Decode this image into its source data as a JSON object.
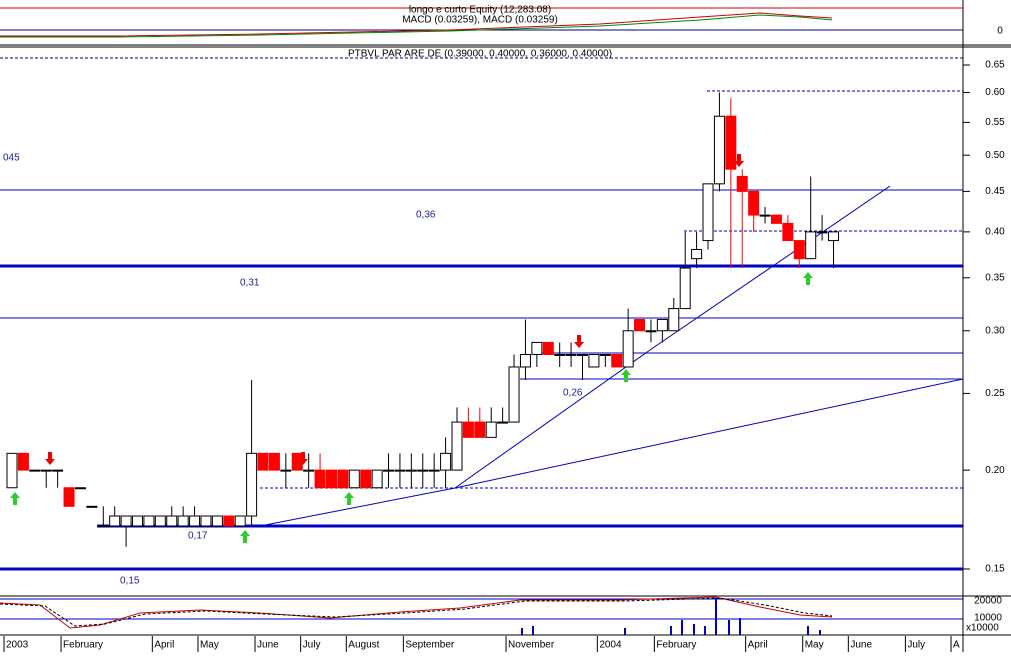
{
  "header": {
    "macd_title": "longo e curto Equity (12,283.08)",
    "macd_subtitle": "MACD (0.03259), MACD (0.03259)",
    "macd_tick": "0"
  },
  "volume": {
    "ticks": [
      "20000",
      "10000"
    ],
    "unit": "x10000"
  },
  "chart_data": {
    "type": "candlestick",
    "title": "PTBVL PAR ARE DE (0.39000, 0.40000, 0.36000, 0.40000)",
    "annotations": [
      "045",
      "0,36",
      "0,31",
      "0,26",
      "0,17",
      "0,15"
    ],
    "categories": [
      "2003",
      null,
      null,
      null,
      null,
      "February",
      null,
      null,
      null,
      null,
      null,
      null,
      null,
      "April",
      null,
      null,
      null,
      "May",
      null,
      null,
      null,
      null,
      "June",
      null,
      null,
      null,
      "July",
      null,
      null,
      null,
      "August",
      null,
      null,
      null,
      null,
      "September",
      null,
      null,
      null,
      null,
      null,
      null,
      null,
      null,
      "November",
      null,
      null,
      null,
      null,
      null,
      null,
      null,
      "2004",
      null,
      null,
      null,
      null,
      "February",
      null,
      null,
      null,
      null,
      null,
      null,
      null,
      "April",
      null,
      null,
      null,
      null,
      "May",
      null,
      null,
      null,
      "June",
      null,
      null,
      null,
      null,
      "July",
      null,
      null,
      null,
      "A"
    ],
    "open": [
      0.19,
      0.21,
      0.2,
      0.2,
      0.2,
      0.19,
      0.19,
      0.18,
      0.17,
      0.17,
      0.17,
      0.17,
      0.17,
      0.17,
      0.17,
      0.17,
      0.17,
      0.17,
      0.17,
      0.175,
      0.17,
      0.175,
      0.21,
      0.21,
      0.2,
      0.21,
      0.2,
      0.2,
      0.2,
      0.2,
      0.19,
      0.2,
      0.19,
      0.2,
      0.2,
      0.2,
      0.2,
      0.2,
      0.2,
      0.2,
      0.23,
      0.23,
      0.22,
      0.23,
      0.23,
      0.27,
      0.28,
      0.29,
      0.28,
      0.28,
      0.28,
      0.27,
      0.28,
      0.28,
      0.27,
      0.31,
      0.3,
      0.3,
      0.3,
      0.32,
      0.37,
      0.39,
      0.46,
      0.56,
      0.47,
      0.45,
      0.42,
      0.42,
      0.41,
      0.39,
      0.37,
      0.4,
      0.39,
      null,
      null,
      null,
      null,
      null,
      null,
      null,
      null,
      null,
      null,
      null
    ],
    "high": [
      0.21,
      0.21,
      0.2,
      0.2,
      0.2,
      0.19,
      0.19,
      0.18,
      0.18,
      0.18,
      0.175,
      0.175,
      0.175,
      0.175,
      0.18,
      0.18,
      0.18,
      0.175,
      0.175,
      0.175,
      0.175,
      0.26,
      0.21,
      0.21,
      0.21,
      0.21,
      0.21,
      0.21,
      0.2,
      0.2,
      0.2,
      0.2,
      0.2,
      0.21,
      0.21,
      0.21,
      0.21,
      0.21,
      0.22,
      0.24,
      0.24,
      0.24,
      0.24,
      0.24,
      0.28,
      0.31,
      0.29,
      0.29,
      0.29,
      0.29,
      0.28,
      0.28,
      0.28,
      0.28,
      0.32,
      0.31,
      0.31,
      0.31,
      0.33,
      0.4,
      0.4,
      0.46,
      0.6,
      0.59,
      0.48,
      0.45,
      0.43,
      0.42,
      0.42,
      0.39,
      0.47,
      0.42,
      0.4,
      null,
      null,
      null,
      null,
      null,
      null,
      null,
      null,
      null,
      null,
      null
    ],
    "low": [
      0.19,
      0.2,
      0.2,
      0.19,
      0.19,
      0.18,
      0.19,
      0.18,
      0.17,
      0.17,
      0.16,
      0.17,
      0.17,
      0.17,
      0.17,
      0.17,
      0.17,
      0.17,
      0.17,
      0.17,
      0.17,
      0.17,
      0.2,
      0.2,
      0.19,
      0.2,
      0.19,
      0.19,
      0.19,
      0.19,
      0.19,
      0.19,
      0.19,
      0.19,
      0.19,
      0.19,
      0.19,
      0.19,
      0.19,
      0.2,
      0.22,
      0.22,
      0.22,
      0.23,
      0.23,
      0.26,
      0.27,
      0.28,
      0.27,
      0.27,
      0.26,
      0.27,
      0.27,
      0.27,
      0.27,
      0.3,
      0.29,
      0.29,
      0.3,
      0.32,
      0.36,
      0.38,
      0.45,
      0.36,
      0.36,
      0.4,
      0.41,
      0.41,
      0.39,
      0.36,
      0.37,
      0.39,
      0.36,
      null,
      null,
      null,
      null,
      null,
      null,
      null,
      null,
      null,
      null,
      null
    ],
    "close": [
      0.21,
      0.2,
      0.2,
      0.2,
      0.2,
      0.18,
      0.19,
      0.18,
      0.17,
      0.175,
      0.175,
      0.175,
      0.175,
      0.175,
      0.175,
      0.175,
      0.175,
      0.175,
      0.175,
      0.17,
      0.175,
      0.21,
      0.2,
      0.2,
      0.2,
      0.2,
      0.2,
      0.19,
      0.19,
      0.19,
      0.2,
      0.19,
      0.2,
      0.2,
      0.2,
      0.2,
      0.2,
      0.2,
      0.21,
      0.23,
      0.22,
      0.22,
      0.23,
      0.23,
      0.27,
      0.28,
      0.29,
      0.28,
      0.28,
      0.28,
      0.28,
      0.28,
      0.28,
      0.27,
      0.3,
      0.3,
      0.3,
      0.31,
      0.32,
      0.36,
      0.38,
      0.46,
      0.56,
      0.48,
      0.45,
      0.42,
      0.42,
      0.41,
      0.39,
      0.37,
      0.4,
      0.4,
      0.4,
      null,
      null,
      null,
      null,
      null,
      null,
      null,
      null,
      null,
      null,
      null
    ],
    "up_color": "#ffffff",
    "down_color": "#ff0000",
    "log_scale": true,
    "ylim": [
      0.15,
      0.65
    ],
    "yticks": [
      0.15,
      {
        "value": 0.2,
        "label": "0.20"
      },
      0.25,
      {
        "value": 0.3,
        "label": "0.30"
      },
      0.35,
      {
        "value": 0.4,
        "label": "0.40"
      },
      0.45,
      {
        "value": 0.5,
        "label": "0.50"
      },
      0.55,
      {
        "value": 0.6,
        "label": "0.60"
      },
      0.65
    ]
  }
}
